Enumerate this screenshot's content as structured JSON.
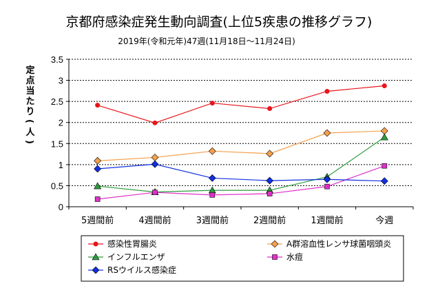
{
  "chart_data": {
    "type": "line",
    "title": "京都府感染症発生動向調査(上位5疾患の推移グラフ)",
    "subtitle": "2019年(令和元年)47週(11月18日～11月24日)",
    "ylabel": "定点当たり(人)",
    "xlabel": "",
    "ylim": [
      0,
      3.5
    ],
    "yticks": [
      "0",
      "0.5",
      "1",
      "1.5",
      "2",
      "2.5",
      "3",
      "3.5"
    ],
    "grid": "horizontal dashed",
    "legend_placement": "bottom",
    "categories": [
      "5週間前",
      "4週間前",
      "3週間前",
      "2週間前",
      "1週間前",
      "今週"
    ],
    "series": [
      {
        "name": "感染性胃腸炎",
        "color": "#e8151b",
        "marker": "circle",
        "values": [
          2.41,
          1.99,
          2.46,
          2.33,
          2.74,
          2.87
        ]
      },
      {
        "name": "A群溶血性レンサ球菌咽頭炎",
        "color": "#f5a04b",
        "marker": "diamond",
        "values": [
          1.09,
          1.17,
          1.32,
          1.26,
          1.75,
          1.8
        ]
      },
      {
        "name": "インフルエンザ",
        "color": "#2a9c3c",
        "marker": "triangle",
        "values": [
          0.49,
          0.35,
          0.39,
          0.39,
          0.71,
          1.65
        ]
      },
      {
        "name": "水痘",
        "color": "#e030c8",
        "marker": "square",
        "values": [
          0.18,
          0.34,
          0.28,
          0.31,
          0.48,
          0.97
        ]
      },
      {
        "name": "RSウイルス感染症",
        "color": "#1030e0",
        "marker": "diamond",
        "values": [
          0.9,
          1.01,
          0.68,
          0.62,
          0.65,
          0.61
        ]
      }
    ]
  }
}
